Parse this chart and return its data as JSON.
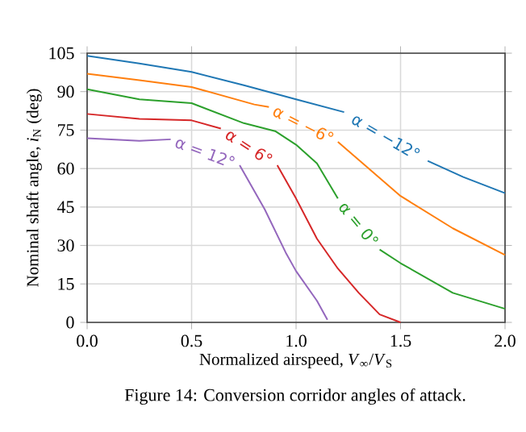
{
  "chart_data": {
    "type": "line",
    "xlabel": "Normalized airspeed, *V*$_{∞}$/*V*$_{S}$",
    "ylabel": "Nominal shaft angle, *i*$_{N}$ (deg)",
    "annotations": [
      "Figure 14: Conversion corridor angles of attack."
    ],
    "xlim": [
      0,
      2
    ],
    "ylim": [
      0,
      105
    ],
    "xticks": [
      {
        "value": 0,
        "label": "0.0"
      },
      0.5,
      {
        "value": 1,
        "label": "1.0"
      },
      1.5,
      {
        "value": 2,
        "label": "2.0"
      }
    ],
    "yticks": [
      0,
      15,
      30,
      45,
      60,
      75,
      90,
      105
    ],
    "grid": true,
    "legend": false,
    "series": [
      {
        "name": "α = −12°",
        "color": "#1f77b4",
        "x": [
          0,
          0.25,
          0.5,
          0.75,
          1.0,
          1.23,
          1.43,
          1.63,
          1.8,
          2.0
        ],
        "values": [
          104,
          101,
          97.7,
          92.5,
          87,
          82,
          null,
          63,
          56.7,
          50.4
        ]
      },
      {
        "name": "α = −6°",
        "color": "#ff7f0e",
        "x": [
          0,
          0.25,
          0.5,
          0.8,
          0.87,
          1.03,
          1.2,
          1.5,
          1.75,
          2.0
        ],
        "values": [
          97,
          94.5,
          91.8,
          85,
          84,
          null,
          70.4,
          49.3,
          36.7,
          26.3
        ]
      },
      {
        "name": "α = 0°",
        "color": "#2ca02c",
        "x": [
          0,
          0.25,
          0.5,
          0.75,
          0.9,
          1.0,
          1.1,
          1.2,
          1.3,
          1.4,
          1.5,
          1.75,
          2.0
        ],
        "values": [
          90.9,
          87,
          85.5,
          77.7,
          74.6,
          69.3,
          62,
          48.3,
          null,
          28.4,
          23.1,
          11.5,
          5.3
        ]
      },
      {
        "name": "α = 6°",
        "color": "#d62728",
        "x": [
          0,
          0.25,
          0.5,
          0.64,
          0.77,
          0.91,
          1.0,
          1.1,
          1.2,
          1.3,
          1.4,
          1.5
        ],
        "values": [
          81.3,
          79.4,
          78.8,
          75.6,
          null,
          61.3,
          48.3,
          32.6,
          21,
          11.5,
          3.1,
          0
        ]
      },
      {
        "name": "α = 12°",
        "color": "#9467bd",
        "x": [
          0,
          0.25,
          0.4,
          0.57,
          0.73,
          0.85,
          0.9,
          0.95,
          1.0,
          1.1,
          1.15
        ],
        "values": [
          71.8,
          70.8,
          71.4,
          null,
          61.3,
          44.1,
          35.7,
          27.3,
          20,
          8.4,
          1
        ]
      }
    ]
  }
}
